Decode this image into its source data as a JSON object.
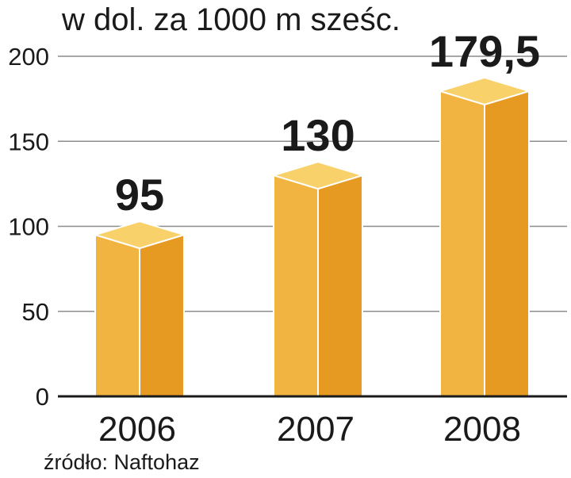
{
  "chart_data": {
    "type": "bar",
    "subtitle": "w dol. za 1000 m sześc.",
    "categories": [
      "2006",
      "2007",
      "2008"
    ],
    "values": [
      95,
      130,
      179.5
    ],
    "value_labels": [
      "95",
      "130",
      "179,5"
    ],
    "ylim": [
      0,
      200
    ],
    "yticks": [
      0,
      50,
      100,
      150,
      200
    ],
    "ytick_labels": [
      "0",
      "50",
      "100",
      "150",
      "200"
    ],
    "grid": true,
    "source": "źródło: Naftohaz",
    "colors": {
      "bar_front": "#f2b441",
      "bar_side": "#e69a22",
      "bar_top": "#f8d16a",
      "gridline": "#8c8c8c",
      "baseline": "#1a1a1a"
    }
  }
}
